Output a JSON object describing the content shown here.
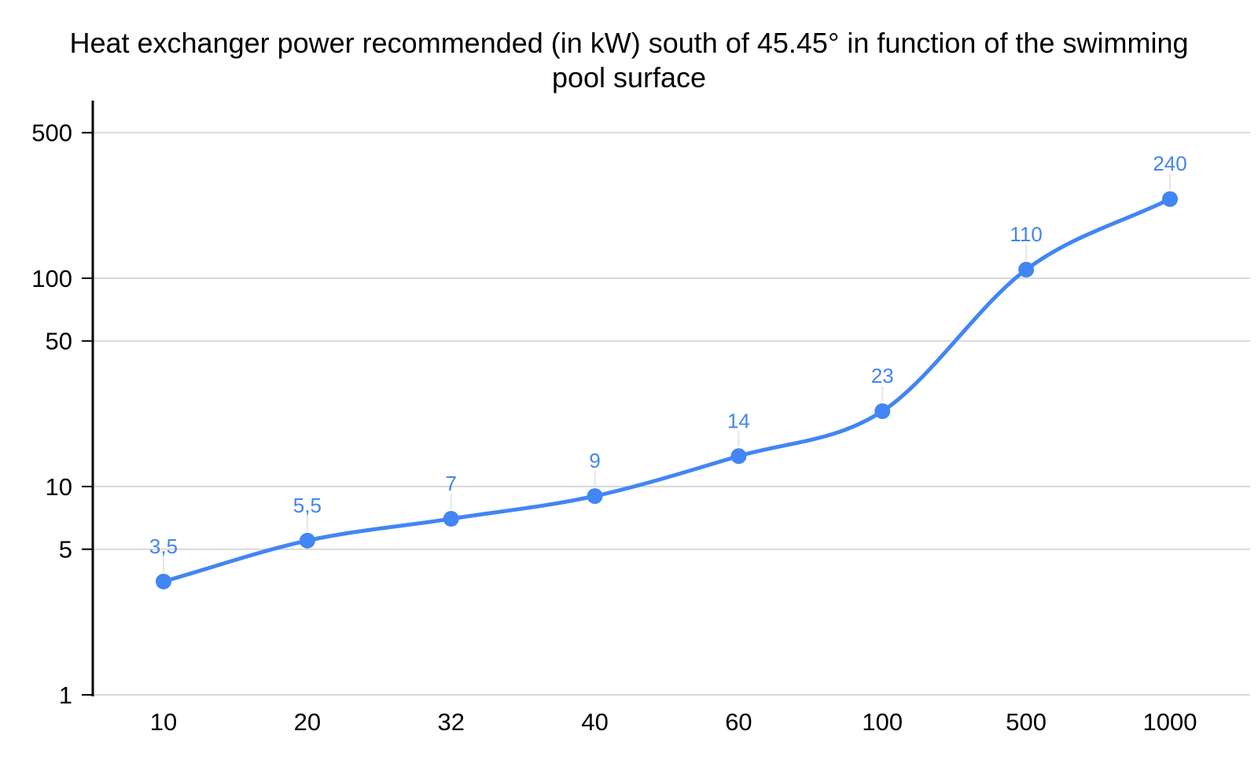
{
  "title": {
    "text": "Heat exchanger power recommended (in kW) south of 45.45° in function of the swimming pool surface",
    "lines": [
      "Heat exchanger power recommended (in kW) south of 45.45° in function of the swimming",
      "pool surface"
    ]
  },
  "chart_data": {
    "type": "line",
    "title": "Heat exchanger power recommended (in kW) south of 45.45° in function of the swimming pool surface",
    "categories": [
      "10",
      "20",
      "32",
      "40",
      "60",
      "100",
      "500",
      "1000"
    ],
    "x_values": [
      10,
      20,
      32,
      40,
      60,
      100,
      500,
      1000
    ],
    "values": [
      3.5,
      5.5,
      7,
      9,
      14,
      23,
      110,
      240
    ],
    "point_labels": [
      "3,5",
      "5,5",
      "7",
      "9",
      "14",
      "23",
      "110",
      "240"
    ],
    "xlabel": "",
    "ylabel": "",
    "y_axis": {
      "scale": "log",
      "tick_labels": [
        "1",
        "5",
        "10",
        "50",
        "100",
        "500"
      ],
      "tick_values": [
        1,
        5,
        10,
        50,
        100,
        500
      ],
      "min": 1,
      "max": 730
    },
    "x_axis": {
      "type": "category"
    },
    "grid": true,
    "legend": "none",
    "smooth": true,
    "markers": "circle",
    "colors": {
      "series": "#4285F4",
      "point_label": "#4285F4",
      "grid": "#D9D9D9",
      "leader": "#E5E5E5",
      "axis": "#000000",
      "tick_label": "#000000",
      "title": "#000000",
      "background": "#FFFFFF"
    }
  }
}
